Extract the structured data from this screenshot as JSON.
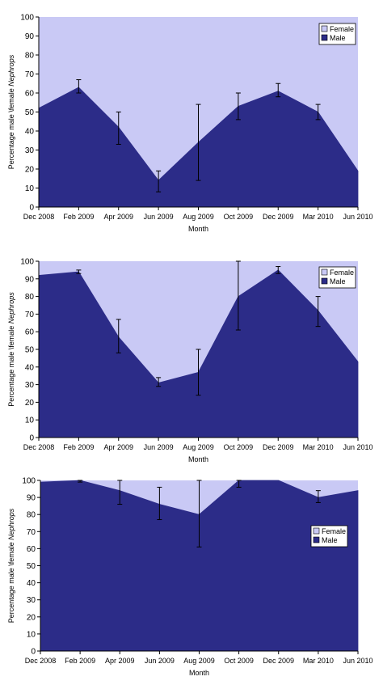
{
  "colors": {
    "male": "#2c2c88",
    "female": "#c9c9f5",
    "axis": "#000000",
    "background": "#ffffff"
  },
  "chart_data": [
    {
      "type": "area",
      "x": [
        "Dec 2008",
        "Feb 2009",
        "Apr 2009",
        "Jun 2009",
        "Aug 2009",
        "Oct 2009",
        "Dec 2009",
        "Mar 2010",
        "Jun 2010"
      ],
      "xlabel": "Month",
      "ylabel_prefix": "Percentage male \\female ",
      "ylabel_italic": "Nephrops",
      "ylim": [
        0,
        100
      ],
      "yticks": [
        0,
        10,
        20,
        30,
        40,
        50,
        60,
        70,
        80,
        90,
        100
      ],
      "legend_position": "top-right",
      "series": [
        {
          "name": "Female",
          "values": [
            100,
            100,
            100,
            100,
            100,
            100,
            100,
            100,
            100
          ]
        },
        {
          "name": "Male",
          "values": [
            52,
            63,
            42,
            14,
            34,
            53,
            61,
            50,
            19
          ]
        }
      ],
      "error_bars": [
        {
          "x": "Feb 2009",
          "low": 60,
          "high": 67
        },
        {
          "x": "Apr 2009",
          "low": 33,
          "high": 50
        },
        {
          "x": "Jun 2009",
          "low": 8,
          "high": 19
        },
        {
          "x": "Aug 2009",
          "low": 14,
          "high": 54
        },
        {
          "x": "Oct 2009",
          "low": 46,
          "high": 60
        },
        {
          "x": "Dec 2009",
          "low": 58,
          "high": 65
        },
        {
          "x": "Mar 2010",
          "low": 46,
          "high": 54
        }
      ]
    },
    {
      "type": "area",
      "x": [
        "Dec 2008",
        "Feb 2009",
        "Apr 2009",
        "Jun 2009",
        "Aug 2009",
        "Oct 2009",
        "Dec 2009",
        "Mar 2010",
        "Jun 2010"
      ],
      "xlabel": "Month",
      "ylabel_prefix": "Percentage male \\female ",
      "ylabel_italic": "Nephrops",
      "ylim": [
        0,
        100
      ],
      "yticks": [
        0,
        10,
        20,
        30,
        40,
        50,
        60,
        70,
        80,
        90,
        100
      ],
      "legend_position": "top-right",
      "series": [
        {
          "name": "Female",
          "values": [
            100,
            100,
            100,
            100,
            100,
            100,
            100,
            100,
            100
          ]
        },
        {
          "name": "Male",
          "values": [
            92,
            94,
            57,
            31,
            37,
            80,
            95,
            72,
            43
          ]
        }
      ],
      "error_bars": [
        {
          "x": "Feb 2009",
          "low": 93,
          "high": 95
        },
        {
          "x": "Apr 2009",
          "low": 48,
          "high": 67
        },
        {
          "x": "Jun 2009",
          "low": 29,
          "high": 34
        },
        {
          "x": "Aug 2009",
          "low": 24,
          "high": 50
        },
        {
          "x": "Oct 2009",
          "low": 61,
          "high": 100
        },
        {
          "x": "Dec 2009",
          "low": 93,
          "high": 97
        },
        {
          "x": "Mar 2010",
          "low": 63,
          "high": 80
        }
      ]
    },
    {
      "type": "area",
      "x": [
        "Dec 2008",
        "Feb 2009",
        "Apr 2009",
        "Jun 2009",
        "Aug 2009",
        "Oct 2009",
        "Dec 2009",
        "Mar 2010",
        "Jun 2010"
      ],
      "xlabel": "Month",
      "ylabel_prefix": "Percentage male \\female ",
      "ylabel_italic": "Nephrops",
      "ylim": [
        0,
        100
      ],
      "yticks": [
        0,
        10,
        20,
        30,
        40,
        50,
        60,
        70,
        80,
        90,
        100
      ],
      "legend_position": "right",
      "series": [
        {
          "name": "Female",
          "values": [
            100,
            100,
            100,
            100,
            100,
            100,
            100,
            100,
            100
          ]
        },
        {
          "name": "Male",
          "values": [
            99,
            100,
            94,
            86,
            80,
            100,
            100,
            90,
            94
          ]
        }
      ],
      "error_bars": [
        {
          "x": "Feb 2009",
          "low": 99,
          "high": 100
        },
        {
          "x": "Apr 2009",
          "low": 86,
          "high": 100
        },
        {
          "x": "Jun 2009",
          "low": 77,
          "high": 96
        },
        {
          "x": "Aug 2009",
          "low": 61,
          "high": 100
        },
        {
          "x": "Oct 2009",
          "low": 96,
          "high": 100
        },
        {
          "x": "Mar 2010",
          "low": 87,
          "high": 94
        }
      ]
    }
  ]
}
